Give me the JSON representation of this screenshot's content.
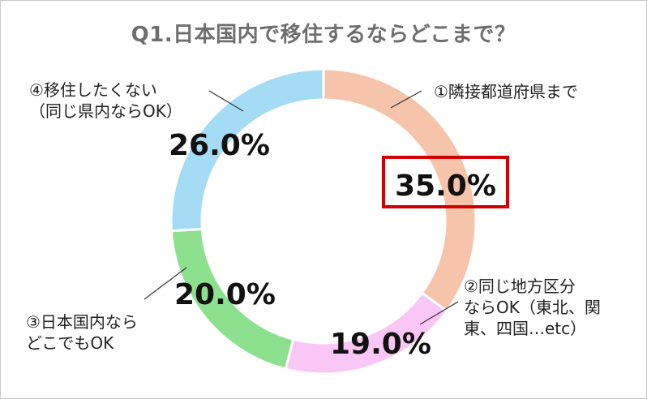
{
  "chart_data": {
    "type": "pie",
    "title": "Q1.日本国内で移住するならどこまで？",
    "slices": [
      {
        "label_lines": [
          "①隣接都道府県まで"
        ],
        "value": 35.0,
        "pct_label": "35.0%",
        "color": "#f5c4aa",
        "highlighted": true
      },
      {
        "label_lines": [
          "②同じ地方区分",
          "ならOK（東北、関",
          "東、四国…etc）"
        ],
        "value": 19.0,
        "pct_label": "19.0%",
        "color": "#f9c6f5",
        "highlighted": false
      },
      {
        "label_lines": [
          "③日本国内なら",
          "どこでもOK"
        ],
        "value": 20.0,
        "pct_label": "20.0%",
        "color": "#8de08d",
        "highlighted": false
      },
      {
        "label_lines": [
          "④移住したくない",
          "（同じ県内ならOK）"
        ],
        "value": 26.0,
        "pct_label": "26.0%",
        "color": "#a4dcf5",
        "highlighted": false
      }
    ],
    "style": "donut",
    "start": "top",
    "direction": "clockwise",
    "highlight_color": "#d40000"
  }
}
